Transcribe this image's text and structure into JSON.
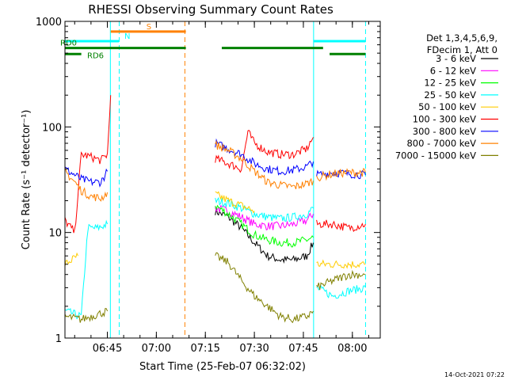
{
  "chart_data": {
    "type": "line",
    "title": "RHESSI Observing Summary Count Rates",
    "xlabel": "Start Time (25-Feb-07 06:32:02)",
    "ylabel": "Count Rate (s⁻¹ detector⁻¹)",
    "x_units": "minutes after 06:32:02",
    "xlim": [
      0,
      96.5
    ],
    "ylim": [
      1,
      1000
    ],
    "yscale": "log",
    "x_ticks": [
      {
        "label": "06:45",
        "value": 12.97
      },
      {
        "label": "07:00",
        "value": 27.97
      },
      {
        "label": "07:15",
        "value": 42.97
      },
      {
        "label": "07:30",
        "value": 57.97
      },
      {
        "label": "07:45",
        "value": 72.97
      },
      {
        "label": "08:00",
        "value": 87.97
      }
    ],
    "y_ticks": [
      {
        "label": "1",
        "value": 1
      },
      {
        "label": "10",
        "value": 10
      },
      {
        "label": "100",
        "value": 100
      },
      {
        "label": "1000",
        "value": 1000
      }
    ],
    "legend": {
      "placement": "right",
      "header": [
        "Det 1,3,4,5,6,9,",
        "FDecim 1, Att 0"
      ]
    },
    "series": [
      {
        "name": "3 - 6 keV",
        "color": "#000000",
        "segments": [
          [
            [
              46,
              16
            ],
            [
              50,
              14
            ],
            [
              54,
              11
            ],
            [
              58,
              8
            ],
            [
              62,
              6
            ],
            [
              66,
              5.5
            ],
            [
              70,
              5.5
            ],
            [
              74,
              6
            ],
            [
              76,
              8
            ]
          ]
        ]
      },
      {
        "name": "6 - 12 keV",
        "color": "#ff00ff",
        "segments": [
          [
            [
              46,
              17
            ],
            [
              50,
              16
            ],
            [
              54,
              14
            ],
            [
              58,
              12
            ],
            [
              62,
              11.5
            ],
            [
              66,
              11.5
            ],
            [
              70,
              12
            ],
            [
              74,
              13
            ],
            [
              76,
              15
            ]
          ]
        ]
      },
      {
        "name": "12 - 25 keV",
        "color": "#00ff00",
        "segments": [
          [
            [
              46,
              18
            ],
            [
              50,
              15
            ],
            [
              54,
              12
            ],
            [
              58,
              9.5
            ],
            [
              62,
              8.5
            ],
            [
              66,
              8
            ],
            [
              70,
              8
            ],
            [
              74,
              8.5
            ],
            [
              76,
              9
            ]
          ]
        ]
      },
      {
        "name": "25 - 50 keV",
        "color": "#00ffff",
        "segments": [
          [
            [
              0,
              1.8
            ],
            [
              5,
              1.6
            ],
            [
              7,
              11
            ],
            [
              10,
              11
            ],
            [
              13,
              12
            ]
          ],
          [
            [
              46,
              20
            ],
            [
              50,
              19
            ],
            [
              54,
              17
            ],
            [
              58,
              15
            ],
            [
              62,
              14
            ],
            [
              66,
              13.5
            ],
            [
              70,
              14
            ],
            [
              74,
              15
            ],
            [
              76,
              17
            ]
          ],
          [
            [
              77,
              3
            ],
            [
              82,
              2.5
            ],
            [
              87,
              2.8
            ],
            [
              92,
              3
            ]
          ]
        ]
      },
      {
        "name": "50 - 100 keV",
        "color": "#ffcc00",
        "segments": [
          [
            [
              0,
              5
            ],
            [
              4,
              6
            ]
          ],
          [
            [
              46,
              23
            ],
            [
              50,
              20
            ],
            [
              54,
              18
            ],
            [
              58,
              16
            ]
          ],
          [
            [
              77,
              5
            ],
            [
              82,
              5
            ],
            [
              87,
              5
            ],
            [
              92,
              5
            ]
          ]
        ]
      },
      {
        "name": "100 - 300 keV",
        "color": "#ff0000",
        "segments": [
          [
            [
              0,
              13
            ],
            [
              3,
              10
            ],
            [
              5,
              55
            ],
            [
              8,
              52
            ],
            [
              11,
              48
            ],
            [
              13,
              55
            ],
            [
              14,
              200
            ]
          ],
          [
            [
              46,
              50
            ],
            [
              50,
              45
            ],
            [
              54,
              40
            ],
            [
              56,
              90
            ],
            [
              58,
              70
            ],
            [
              62,
              58
            ],
            [
              66,
              55
            ],
            [
              70,
              55
            ],
            [
              74,
              62
            ],
            [
              76,
              80
            ]
          ],
          [
            [
              77,
              12
            ],
            [
              82,
              12
            ],
            [
              87,
              11
            ],
            [
              92,
              12
            ]
          ]
        ]
      },
      {
        "name": "300 - 800 keV",
        "color": "#0000ff",
        "segments": [
          [
            [
              0,
              40
            ],
            [
              3,
              35
            ],
            [
              5,
              32
            ],
            [
              8,
              30
            ],
            [
              11,
              30
            ],
            [
              13,
              38
            ]
          ],
          [
            [
              46,
              70
            ],
            [
              50,
              62
            ],
            [
              54,
              55
            ],
            [
              58,
              45
            ],
            [
              62,
              40
            ],
            [
              66,
              38
            ],
            [
              70,
              39
            ],
            [
              74,
              42
            ],
            [
              76,
              47
            ]
          ],
          [
            [
              77,
              35
            ],
            [
              82,
              37
            ],
            [
              87,
              36
            ],
            [
              92,
              35
            ]
          ]
        ]
      },
      {
        "name": "800 - 7000 keV",
        "color": "#ff8000",
        "segments": [
          [
            [
              0,
              38
            ],
            [
              3,
              30
            ],
            [
              5,
              25
            ],
            [
              8,
              22
            ],
            [
              11,
              21
            ],
            [
              13,
              24
            ]
          ],
          [
            [
              46,
              68
            ],
            [
              50,
              60
            ],
            [
              54,
              50
            ],
            [
              58,
              38
            ],
            [
              62,
              30
            ],
            [
              66,
              28
            ],
            [
              70,
              27
            ],
            [
              74,
              29
            ],
            [
              76,
              31
            ]
          ],
          [
            [
              77,
              33
            ],
            [
              82,
              36
            ],
            [
              87,
              37
            ],
            [
              92,
              37
            ]
          ]
        ]
      },
      {
        "name": "7000 - 15000 keV",
        "color": "#808000",
        "segments": [
          [
            [
              0,
              1.6
            ],
            [
              5,
              1.5
            ],
            [
              13,
              1.8
            ]
          ],
          [
            [
              46,
              6
            ],
            [
              50,
              5.2
            ],
            [
              54,
              3.5
            ],
            [
              58,
              2.5
            ],
            [
              62,
              2
            ],
            [
              66,
              1.6
            ],
            [
              70,
              1.5
            ],
            [
              74,
              1.6
            ],
            [
              76,
              1.8
            ]
          ],
          [
            [
              77,
              3
            ],
            [
              82,
              3.5
            ],
            [
              87,
              4
            ],
            [
              92,
              4
            ]
          ]
        ]
      }
    ],
    "state_bars": [
      {
        "label": "S",
        "color": "#ff8000",
        "y": 800,
        "ranges": [
          [
            14,
            37
          ]
        ]
      },
      {
        "label": "N",
        "color": "#00ffff",
        "y": 650,
        "ranges": [
          [
            0,
            16.5
          ],
          [
            76,
            92
          ]
        ]
      },
      {
        "label": "RD0",
        "color": "#008000",
        "y": 560,
        "ranges": [
          [
            0,
            37
          ],
          [
            48,
            79
          ]
        ]
      },
      {
        "label": "RD6",
        "color": "#008000",
        "y": 490,
        "ranges": [
          [
            0,
            5
          ],
          [
            81,
            92
          ]
        ]
      }
    ],
    "vertical_lines": [
      {
        "x": 13.9,
        "color": "#00ffff",
        "style": "solid"
      },
      {
        "x": 16.6,
        "color": "#00ffff",
        "style": "dashed"
      },
      {
        "x": 36.7,
        "color": "#ff8000",
        "style": "dashed"
      },
      {
        "x": 76.1,
        "color": "#00ffff",
        "style": "solid"
      },
      {
        "x": 92.0,
        "color": "#00ffff",
        "style": "dashed"
      }
    ],
    "footer": "14-Oct-2021 07:22"
  }
}
